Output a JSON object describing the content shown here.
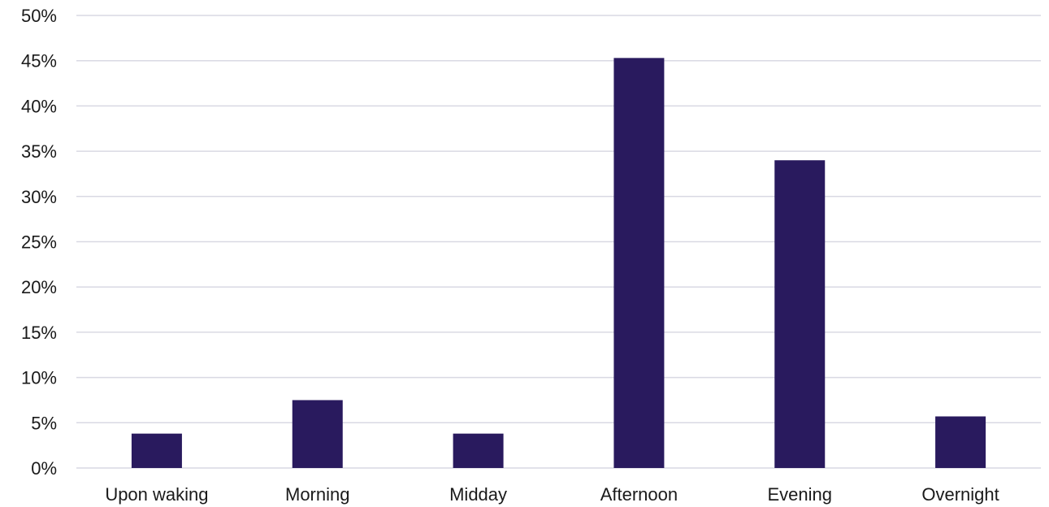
{
  "chart_data": {
    "type": "bar",
    "title": "",
    "xlabel": "",
    "ylabel": "",
    "categories": [
      "Upon waking",
      "Morning",
      "Midday",
      "Afternoon",
      "Evening",
      "Overnight"
    ],
    "values": [
      3.8,
      7.5,
      3.8,
      45.3,
      34.0,
      5.7
    ],
    "ylim": [
      0,
      50
    ],
    "ytick_step": 5,
    "y_tick_labels": [
      "0%",
      "5%",
      "10%",
      "15%",
      "20%",
      "25%",
      "30%",
      "35%",
      "40%",
      "45%",
      "50%"
    ],
    "grid": true,
    "legend": "none",
    "bar_color": "#291a5e"
  }
}
